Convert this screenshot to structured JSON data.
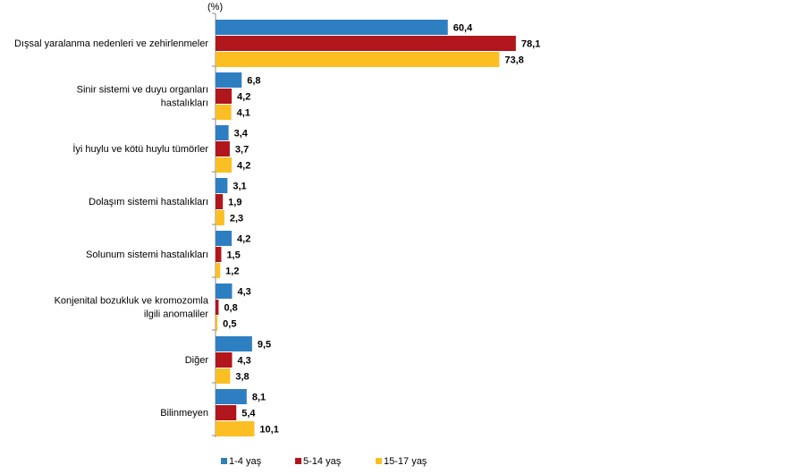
{
  "chart_data": {
    "type": "hbar",
    "unit_label": "(%)",
    "categories": [
      [
        "Dışsal yaralanma nedenleri ve zehirlenmeler"
      ],
      [
        "Sinir sistemi ve duyu organları",
        "hastalıkları"
      ],
      [
        "İyi huylu ve kötü huylu tümörler"
      ],
      [
        "Dolaşım sistemi hastalıkları"
      ],
      [
        "Solunum sistemi hastalıkları"
      ],
      [
        "Konjenital bozukluk ve kromozomla",
        "ilgili anomaliler"
      ],
      [
        "Diğer"
      ],
      [
        "Bilinmeyen"
      ]
    ],
    "series": [
      {
        "name": "1-4 yaş",
        "color": "#2e7fc2",
        "values": [
          60.4,
          6.8,
          3.4,
          3.1,
          4.2,
          4.3,
          9.5,
          8.1
        ],
        "value_labels": [
          "60,4",
          "6,8",
          "3,4",
          "3,1",
          "4,2",
          "4,3",
          "9,5",
          "8,1"
        ]
      },
      {
        "name": "5-14 yaş",
        "color": "#b0161c",
        "values": [
          78.1,
          4.2,
          3.7,
          1.9,
          1.5,
          0.8,
          4.3,
          5.4
        ],
        "value_labels": [
          "78,1",
          "4,2",
          "3,7",
          "1,9",
          "1,5",
          "0,8",
          "4,3",
          "5,4"
        ]
      },
      {
        "name": "15-17 yaş",
        "color": "#fbbf24",
        "values": [
          73.8,
          4.1,
          4.2,
          2.3,
          1.2,
          0.5,
          3.8,
          10.1
        ],
        "value_labels": [
          "73,8",
          "4,1",
          "4,2",
          "2,3",
          "1,2",
          "0,5",
          "3,8",
          "10,1"
        ]
      }
    ],
    "legend": "bottom"
  }
}
